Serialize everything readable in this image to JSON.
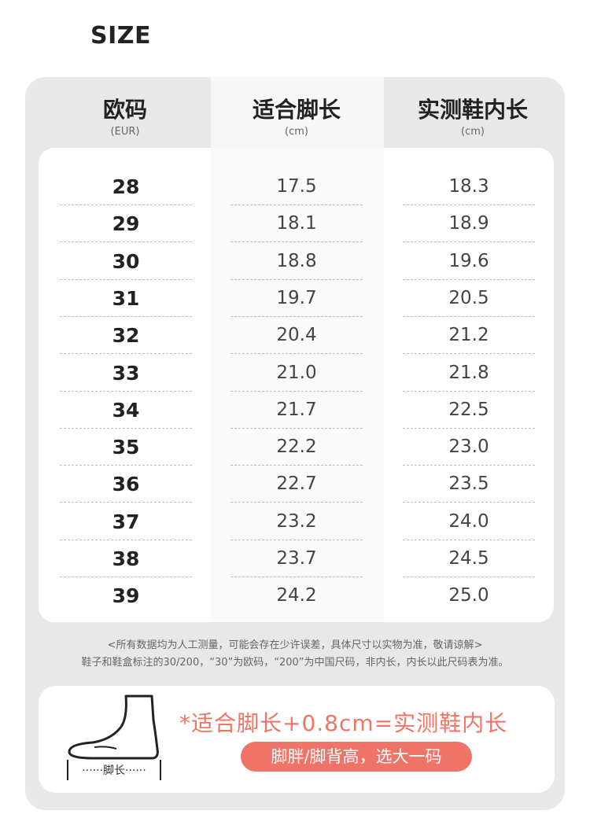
{
  "title": "SIZE",
  "headers": [
    {
      "main": "欧码",
      "sub": "(EUR)"
    },
    {
      "main": "适合脚长",
      "sub": "(cm)"
    },
    {
      "main": "实测鞋内长",
      "sub": "(cm)"
    }
  ],
  "rows": [
    {
      "eur": "28",
      "foot": "17.5",
      "shoe": "18.3"
    },
    {
      "eur": "29",
      "foot": "18.1",
      "shoe": "18.9"
    },
    {
      "eur": "30",
      "foot": "18.8",
      "shoe": "19.6"
    },
    {
      "eur": "31",
      "foot": "19.7",
      "shoe": "20.5"
    },
    {
      "eur": "32",
      "foot": "20.4",
      "shoe": "21.2"
    },
    {
      "eur": "33",
      "foot": "21.0",
      "shoe": "21.8"
    },
    {
      "eur": "34",
      "foot": "21.7",
      "shoe": "22.5"
    },
    {
      "eur": "35",
      "foot": "22.2",
      "shoe": "23.0"
    },
    {
      "eur": "36",
      "foot": "22.7",
      "shoe": "23.5"
    },
    {
      "eur": "37",
      "foot": "23.2",
      "shoe": "24.0"
    },
    {
      "eur": "38",
      "foot": "23.7",
      "shoe": "24.5"
    },
    {
      "eur": "39",
      "foot": "24.2",
      "shoe": "25.0"
    }
  ],
  "notes": [
    "<所有数据均为人工测量，可能会存在少许误差，具体尺寸以实物为准，敬请谅解>",
    "鞋子和鞋盒标注的30/200，“30”为欧码，“200”为中国尺码，非内长，内长以此尺码表为准。"
  ],
  "tip": {
    "formula": "*适合脚长+0.8cm=实测鞋内长",
    "pill": "脚胖/脚背高，选大一码",
    "figure_label": "······脚长······"
  },
  "colors": {
    "accent": "#ef7366",
    "panel": "#e8e8e8"
  },
  "icons": [
    "foot-outline-icon"
  ]
}
